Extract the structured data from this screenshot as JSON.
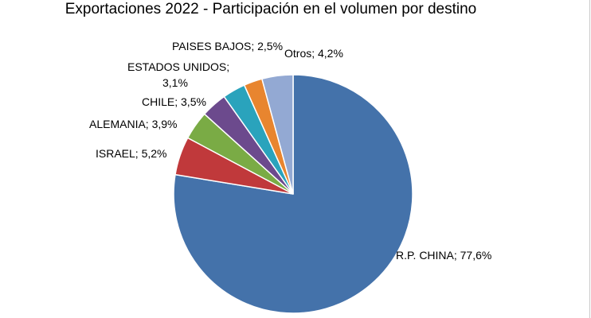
{
  "chart_data": {
    "type": "pie",
    "title": "Exportaciones 2022 - Participación en el volumen por destino",
    "slices": [
      {
        "name": "R.P. CHINA",
        "value": 77.6,
        "label": "R.P. CHINA; 77,6%",
        "color": "#4472aa"
      },
      {
        "name": "ISRAEL",
        "value": 5.2,
        "label": "ISRAEL; 5,2%",
        "color": "#c0393b"
      },
      {
        "name": "ALEMANIA",
        "value": 3.9,
        "label": "ALEMANIA; 3,9%",
        "color": "#7aab45"
      },
      {
        "name": "CHILE",
        "value": 3.5,
        "label": "CHILE; 3,5%",
        "color": "#6c4a8d"
      },
      {
        "name": "ESTADOS UNIDOS",
        "value": 3.1,
        "label": "ESTADOS UNIDOS;",
        "label2": "3,1%",
        "color": "#2aa3bc"
      },
      {
        "name": "PAISES BAJOS",
        "value": 2.5,
        "label": "PAISES BAJOS; 2,5%",
        "color": "#e8852f"
      },
      {
        "name": "Otros",
        "value": 4.2,
        "label": "Otros; 4,2%",
        "color": "#93a9d3"
      }
    ]
  }
}
